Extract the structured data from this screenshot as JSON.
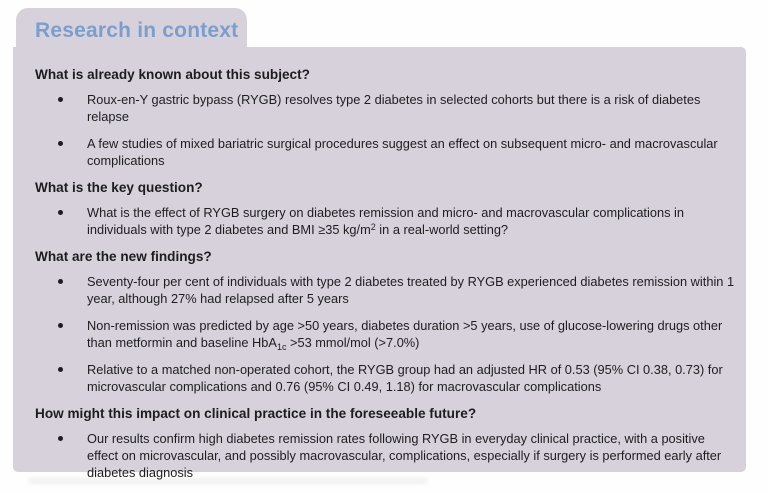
{
  "theme": {
    "page_bg": "#fefefe",
    "panel_bg": "#d7d1dc",
    "title_color": "#7c9ecd",
    "text_color": "#1d1d1f"
  },
  "panel": {
    "title": "Research in context",
    "sections": [
      {
        "heading": "What is already known about this subject?",
        "bullets": [
          [
            {
              "t": "Roux-en-Y gastric bypass (RYGB) resolves type 2 diabetes in selected cohorts but there is a risk of diabetes relapse"
            }
          ],
          [
            {
              "t": "A few studies of mixed bariatric surgical procedures suggest an effect on subsequent micro- and macrovascular complications"
            }
          ]
        ]
      },
      {
        "heading": "What is the key question?",
        "bullets": [
          [
            {
              "t": "What is the effect of RYGB surgery on diabetes remission and micro- and macrovascular complications in individuals with type 2 diabetes and BMI ≥35 kg/m"
            },
            {
              "t": "2",
              "s": "sup"
            },
            {
              "t": " in a real-world setting?"
            }
          ]
        ]
      },
      {
        "heading": "What are the new findings?",
        "bullets": [
          [
            {
              "t": "Seventy-four per cent of individuals with type 2 diabetes treated by RYGB experienced diabetes remission within 1 year, although 27% had relapsed after 5 years"
            }
          ],
          [
            {
              "t": "Non-remission was predicted by age >50 years, diabetes duration >5 years, use of glucose-lowering drugs other than metformin and baseline HbA"
            },
            {
              "t": "1c",
              "s": "sub"
            },
            {
              "t": " >53 mmol/mol (>7.0%)"
            }
          ],
          [
            {
              "t": "Relative to a matched non-operated cohort, the RYGB group had an adjusted HR of 0.53 (95% CI 0.38, 0.73) for microvascular complications and 0.76 (95% CI 0.49, 1.18) for macrovascular complications"
            }
          ]
        ]
      },
      {
        "heading": "How might this impact on clinical practice in the foreseeable future?",
        "bullets": [
          [
            {
              "t": "Our results confirm high diabetes remission rates following RYGB in everyday clinical practice, with a positive effect on microvascular, and possibly macrovascular, complications, especially if surgery is performed early after diabetes diagnosis"
            }
          ]
        ]
      }
    ]
  }
}
